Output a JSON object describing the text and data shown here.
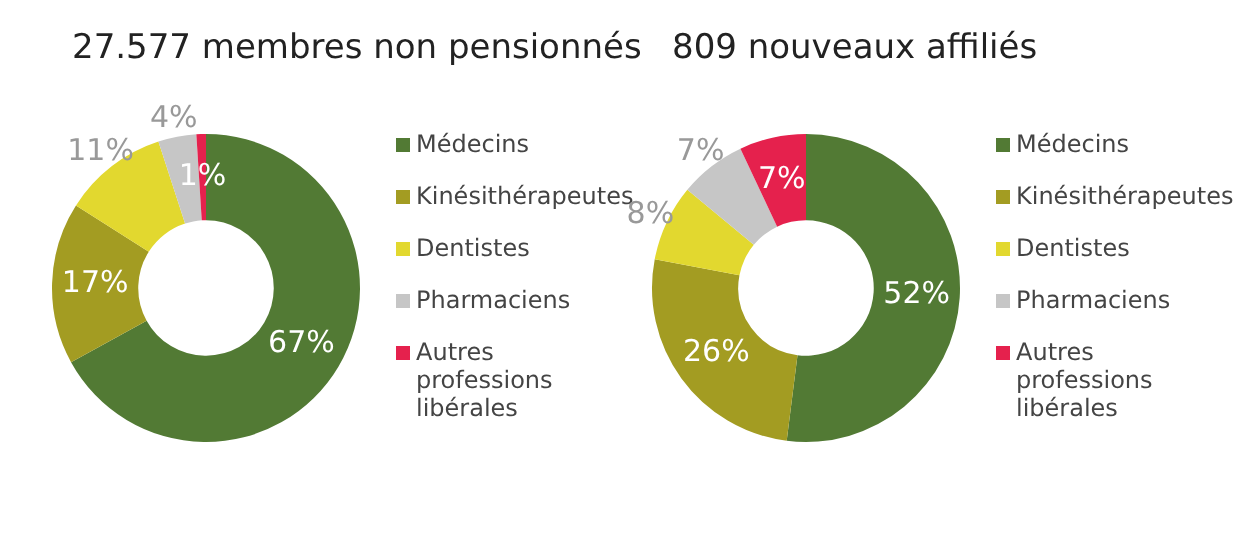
{
  "chart_data": [
    {
      "type": "donut",
      "title": "27.577 membres non pensionnés",
      "categories": [
        "Médecins",
        "Kinésithérapeutes",
        "Dentistes",
        "Pharmaciens",
        "Autres professions libérales"
      ],
      "values": [
        67,
        17,
        11,
        4,
        1
      ],
      "value_labels": [
        "67%",
        "17%",
        "11%",
        "4%",
        "1%"
      ],
      "colors": [
        "#527a34",
        "#a39c22",
        "#e2d82f",
        "#c6c6c6",
        "#e5214d"
      ],
      "legend": "right"
    },
    {
      "type": "donut",
      "title": "809 nouveaux affiliés",
      "categories": [
        "Médecins",
        "Kinésithérapeutes",
        "Dentistes",
        "Pharmaciens",
        "Autres professions libérales"
      ],
      "values": [
        52,
        26,
        8,
        7,
        7
      ],
      "value_labels": [
        "52%",
        "26%",
        "8%",
        "7%",
        "7%"
      ],
      "colors": [
        "#527a34",
        "#a39c22",
        "#e2d82f",
        "#c6c6c6",
        "#e5214d"
      ],
      "legend": "right"
    }
  ]
}
